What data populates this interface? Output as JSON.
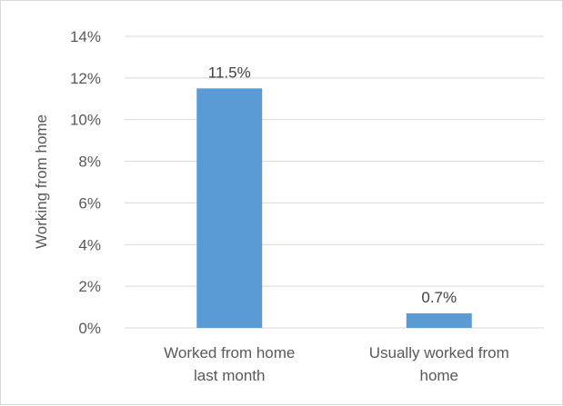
{
  "chart_data": {
    "type": "bar",
    "categories": [
      [
        "Worked from home",
        "last month"
      ],
      [
        "Usually worked from",
        "home"
      ]
    ],
    "values": [
      11.5,
      0.7
    ],
    "data_labels": [
      "11.5%",
      "0.7%"
    ],
    "title": "",
    "xlabel": "",
    "ylabel": "Working from home",
    "ylim": [
      0,
      14
    ],
    "yticks": [
      0,
      2,
      4,
      6,
      8,
      10,
      12,
      14
    ],
    "ytick_labels": [
      "0%",
      "2%",
      "4%",
      "6%",
      "8%",
      "10%",
      "12%",
      "14%"
    ],
    "grid": true,
    "legend": "none",
    "colors": {
      "bar": "#5b9bd5",
      "grid": "#d9d9d9",
      "text": "#595959"
    }
  }
}
